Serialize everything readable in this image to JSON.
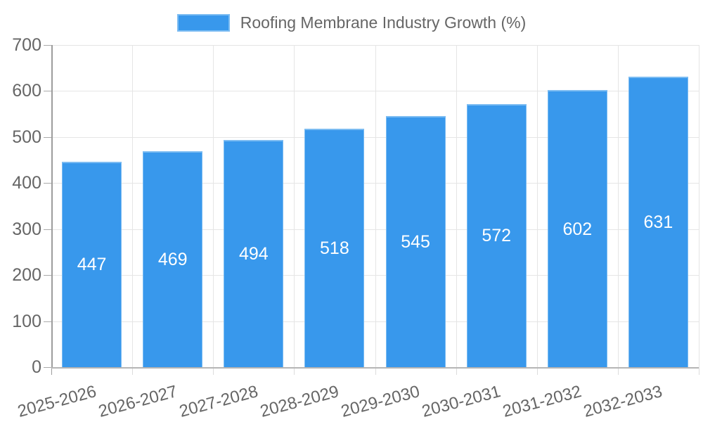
{
  "legend": {
    "label": "Roofing Membrane Industry Growth (%)"
  },
  "chart_data": {
    "type": "bar",
    "title": "Roofing Membrane Industry Growth (%)",
    "categories": [
      "2025-2026",
      "2026-2027",
      "2027-2028",
      "2028-2029",
      "2029-2030",
      "2030-2031",
      "2031-2032",
      "2032-2033"
    ],
    "values": [
      447,
      469,
      494,
      518,
      545,
      572,
      602,
      631
    ],
    "xlabel": "",
    "ylabel": "",
    "ylim": [
      0,
      700
    ],
    "yticks": [
      0,
      100,
      200,
      300,
      400,
      500,
      600,
      700
    ],
    "grid": true,
    "legend_position": "top",
    "colors": {
      "bar_fill": "#3898ec",
      "bar_border": "#7cbcf2",
      "bar_label": "#ffffff",
      "gridline": "#e5e5e5",
      "y_axis": "#9c9c9c",
      "x_axis": "#b5b5b5",
      "y_tick": "#aaaaaa",
      "x_tick": "#dcdcdc",
      "tick_text": "#666666"
    }
  }
}
